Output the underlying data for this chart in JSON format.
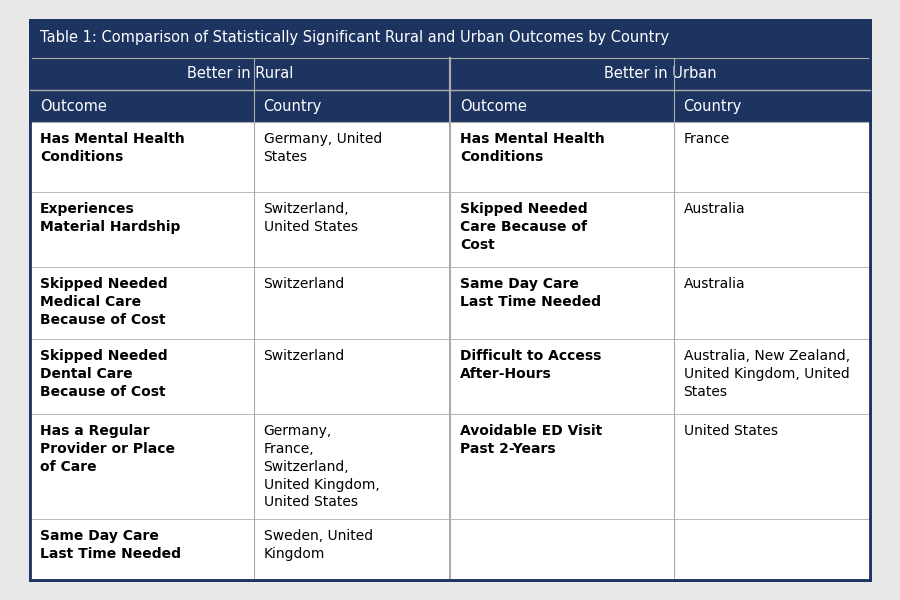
{
  "title": "Table 1: Comparison of Statistically Significant Rural and Urban Outcomes by Country",
  "header_bg": "#1d3461",
  "border_color": "#aaaaaa",
  "outer_border_color": "#1d3461",
  "header_text_color": "#ffffff",
  "cell_text_color": "#000000",
  "fig_bg": "#e8e8e8",
  "table_bg": "#ffffff",
  "title_fontsize": 10.5,
  "header_fontsize": 10.5,
  "col_header_fontsize": 10.5,
  "cell_fontsize": 10,
  "columns": [
    "Outcome",
    "Country",
    "Outcome",
    "Country"
  ],
  "section_headers": [
    "Better in Rural",
    "Better in Urban"
  ],
  "rows": [
    {
      "rural_outcome": "Has Mental Health\nConditions",
      "rural_country": "Germany, United\nStates",
      "urban_outcome": "Has Mental Health\nConditions",
      "urban_country": "France"
    },
    {
      "rural_outcome": "Experiences\nMaterial Hardship",
      "rural_country": "Switzerland,\nUnited States",
      "urban_outcome": "Skipped Needed\nCare Because of\nCost",
      "urban_country": "Australia"
    },
    {
      "rural_outcome": "Skipped Needed\nMedical Care\nBecause of Cost",
      "rural_country": "Switzerland",
      "urban_outcome": "Same Day Care\nLast Time Needed",
      "urban_country": "Australia"
    },
    {
      "rural_outcome": "Skipped Needed\nDental Care\nBecause of Cost",
      "rural_country": "Switzerland",
      "urban_outcome": "Difficult to Access\nAfter-Hours",
      "urban_country": "Australia, New Zealand,\nUnited Kingdom, United\nStates"
    },
    {
      "rural_outcome": "Has a Regular\nProvider or Place\nof Care",
      "rural_country": "Germany,\nFrance,\nSwitzerland,\nUnited Kingdom,\nUnited States",
      "urban_outcome": "Avoidable ED Visit\nPast 2-Years",
      "urban_country": "United States"
    },
    {
      "rural_outcome": "Same Day Care\nLast Time Needed",
      "rural_country": "Sweden, United\nKingdom",
      "urban_outcome": "",
      "urban_country": ""
    }
  ],
  "figsize": [
    9.0,
    6.0
  ],
  "dpi": 100
}
